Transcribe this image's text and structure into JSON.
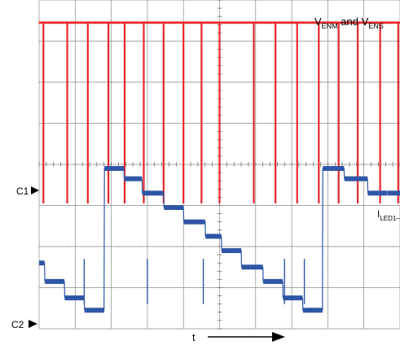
{
  "chart_data": {
    "type": "line",
    "title": "",
    "xlabel": "t",
    "ylabel": "",
    "grid": true,
    "divisions": {
      "x": 10,
      "y": 8
    },
    "series": [
      {
        "id": "ch1",
        "channel_marker": "C1",
        "label_main": "V",
        "label_sub1": "ENM",
        "label_mid": " and V",
        "label_sub2": "ENS",
        "color": "#e8262a",
        "high_level": 7.45,
        "low_level": 3.05,
        "pulse_x": [
          0.12,
          0.78,
          1.35,
          1.92,
          2.37,
          2.9,
          3.45,
          4.0,
          4.5,
          5.0,
          5.95,
          6.55,
          7.15,
          7.75,
          8.3,
          8.83,
          9.45,
          9.95
        ],
        "tick_level": 3.95
      },
      {
        "id": "ch2",
        "channel_marker": "C2",
        "label_main": "I",
        "label_sub1": "LED1–",
        "color": "#2f56a6",
        "x": [
          0.0,
          0.15,
          0.16,
          0.7,
          0.71,
          1.25,
          1.26,
          1.8,
          1.81,
          2.35,
          2.36,
          2.85,
          2.86,
          3.45,
          3.46,
          4.0,
          4.01,
          4.6,
          4.61,
          5.05,
          5.06,
          5.6,
          5.61,
          6.2,
          6.21,
          6.75,
          6.76,
          7.3,
          7.31,
          7.85,
          7.86,
          8.45,
          8.46,
          9.1,
          9.11,
          9.65,
          9.66,
          10.0
        ],
        "y": [
          1.6,
          1.6,
          1.15,
          1.15,
          0.75,
          0.75,
          0.45,
          0.45,
          3.9,
          3.9,
          3.65,
          3.65,
          3.3,
          3.3,
          2.95,
          2.95,
          2.6,
          2.6,
          2.25,
          2.25,
          1.9,
          1.9,
          1.5,
          1.5,
          1.15,
          1.15,
          0.75,
          0.75,
          0.45,
          0.45,
          3.9,
          3.9,
          3.65,
          3.65,
          3.3,
          3.3,
          3.3,
          3.3
        ],
        "glitch_x": [
          1.25,
          3.0,
          4.55,
          6.8,
          7.35
        ]
      }
    ]
  }
}
